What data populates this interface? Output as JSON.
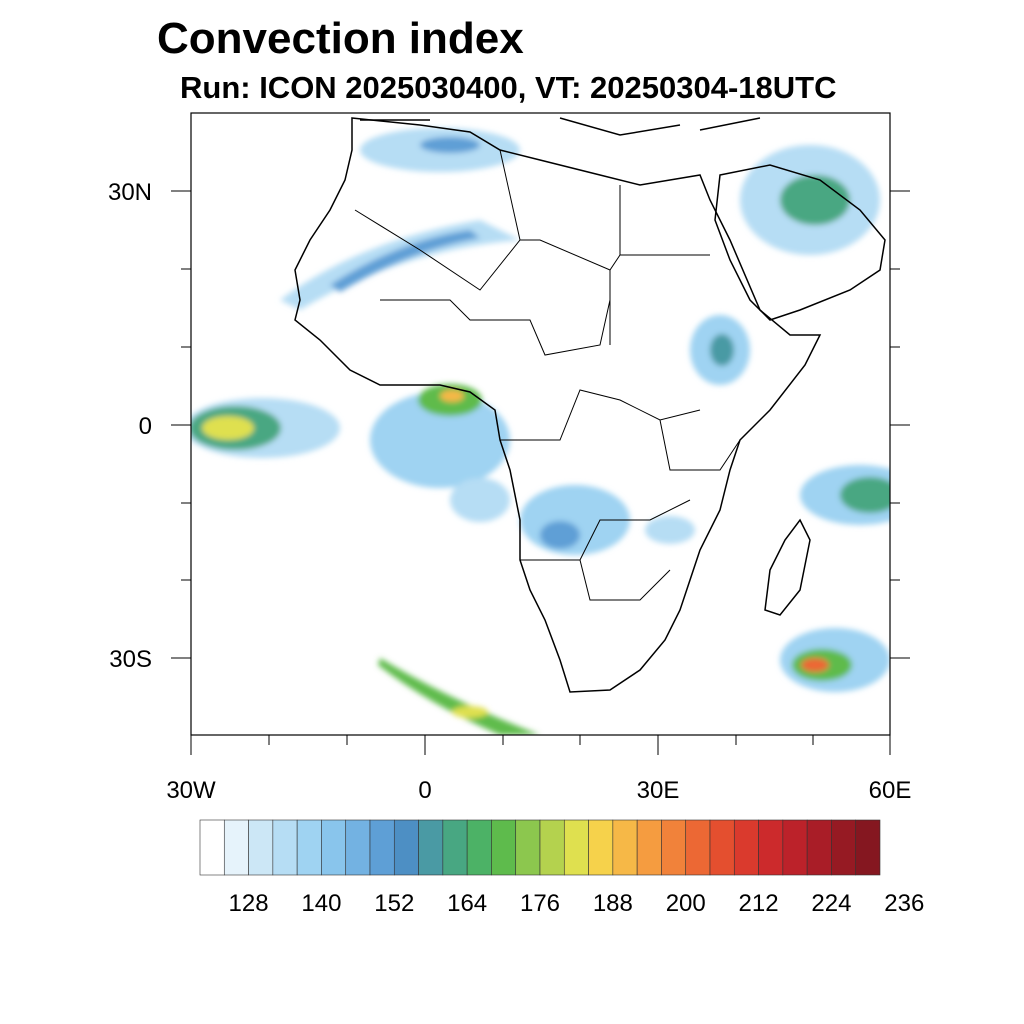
{
  "title": "Convection index",
  "subtitle": "Run: ICON 2025030400,  VT: 20250304-18UTC",
  "map": {
    "lon_range": [
      -30,
      60
    ],
    "lat_range": [
      -40,
      40
    ],
    "lon_ticks": [
      "30W",
      "0",
      "30E",
      "60E"
    ],
    "lat_ticks": [
      "30N",
      "0",
      "30S"
    ]
  },
  "colorbar": {
    "labels": [
      "128",
      "140",
      "152",
      "164",
      "176",
      "188",
      "200",
      "212",
      "224",
      "236"
    ],
    "colors": [
      "#ffffff",
      "#e6f3fb",
      "#cce7f6",
      "#b6ddf4",
      "#9fd3f2",
      "#89c5ec",
      "#73b2e2",
      "#5e9fd6",
      "#4d8fc4",
      "#4a9aa4",
      "#48a782",
      "#4cb266",
      "#5ebb4c",
      "#8cc74e",
      "#b4d24e",
      "#dfe04f",
      "#f6d24b",
      "#f6b847",
      "#f59c40",
      "#f1823a",
      "#ec6834",
      "#e44f2f",
      "#da3a2d",
      "#cc2a2c",
      "#bc222a",
      "#a91d27",
      "#961a23",
      "#851720"
    ]
  }
}
